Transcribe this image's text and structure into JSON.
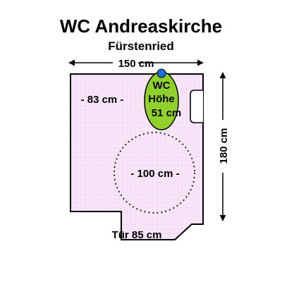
{
  "title": "WC Andreaskirche",
  "subtitle": "Fürstenried",
  "dimensions": {
    "width_label": "150 cm",
    "height_label": "180 cm",
    "side_clearance_label": "- 83 cm -",
    "turning_circle_label": "- 100 cm -",
    "door_label": "Tür 85 cm"
  },
  "toilet": {
    "line1": "WC",
    "line2": "Höhe",
    "line3": "51 cm"
  },
  "colors": {
    "floor_fill": "#f7e6f7",
    "grid_line": "#ecc8ec",
    "wall": "#000000",
    "toilet_fill": "#8fd12a",
    "toilet_marker": "#1e6fd9",
    "arrow": "#000000"
  }
}
